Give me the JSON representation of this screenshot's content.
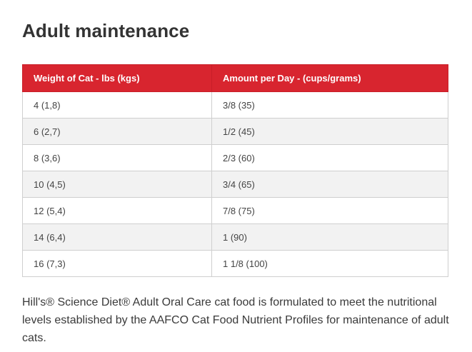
{
  "title": "Adult maintenance",
  "table": {
    "headers": [
      "Weight of Cat - lbs (kgs)",
      "Amount per Day - (cups/grams)"
    ],
    "rows": [
      [
        "4 (1,8)",
        "3/8 (35)"
      ],
      [
        "6 (2,7)",
        "1/2 (45)"
      ],
      [
        "8 (3,6)",
        "2/3 (60)"
      ],
      [
        "10 (4,5)",
        "3/4 (65)"
      ],
      [
        "12 (5,4)",
        "7/8 (75)"
      ],
      [
        "14 (6,4)",
        "1 (90)"
      ],
      [
        "16 (7,3)",
        "1 1/8 (100)"
      ]
    ]
  },
  "note": "Hill's® Science Diet® Adult Oral Care cat food is formulated to meet the nutritional levels established by the AAFCO Cat Food Nutrient Profiles for maintenance of adult cats.",
  "colors": {
    "header_bg": "#d8252f",
    "header_text": "#ffffff",
    "row_alt": "#f2f2f2",
    "border": "#cfcfcf"
  }
}
